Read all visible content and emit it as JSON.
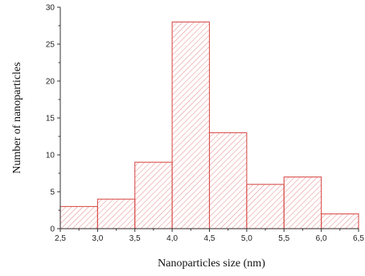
{
  "chart_data": {
    "type": "bar",
    "subtype": "histogram",
    "bins": [
      {
        "x0": 2.5,
        "x1": 3.0,
        "count": 3
      },
      {
        "x0": 3.0,
        "x1": 3.5,
        "count": 4
      },
      {
        "x0": 3.5,
        "x1": 4.0,
        "count": 9
      },
      {
        "x0": 4.0,
        "x1": 4.5,
        "count": 28
      },
      {
        "x0": 4.5,
        "x1": 5.0,
        "count": 13
      },
      {
        "x0": 5.0,
        "x1": 5.5,
        "count": 6
      },
      {
        "x0": 5.5,
        "x1": 6.0,
        "count": 7
      },
      {
        "x0": 6.0,
        "x1": 6.5,
        "count": 2
      }
    ],
    "xlabel": "Nanoparticles size (nm)",
    "ylabel": "Number of nanoparticles",
    "xlim": [
      2.5,
      6.5
    ],
    "ylim": [
      0,
      30
    ],
    "x_ticks": [
      "2,5",
      "3,0",
      "3,5",
      "4,0",
      "4,5",
      "5,0",
      "5,5",
      "6,0",
      "6,5"
    ],
    "y_ticks": [
      "0",
      "5",
      "10",
      "15",
      "20",
      "25",
      "30"
    ],
    "grid": false,
    "legend": "none",
    "colors": {
      "bar_edge": "#d9534f",
      "hatch": "#e07a7a",
      "axis": "#333333"
    }
  }
}
